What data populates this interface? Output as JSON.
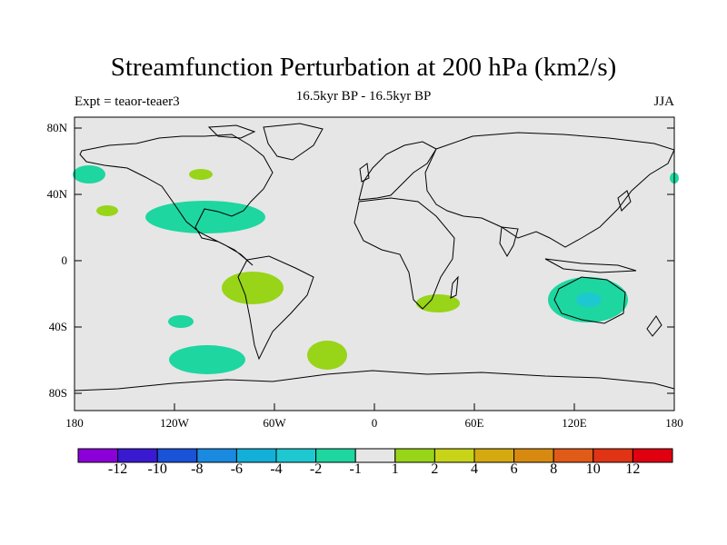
{
  "title": "Streamfunction Perturbation at 200 hPa (km2/s)",
  "left_label": "Expt = teaor-teaer3",
  "center_label": "16.5kyr BP - 16.5kyr BP",
  "right_label": "JJA",
  "lat_ticks": [
    "80N",
    "40N",
    "0",
    "40S",
    "80S"
  ],
  "lon_ticks": [
    "180",
    "120W",
    "60W",
    "0",
    "60E",
    "120E",
    "180"
  ],
  "colorbar": {
    "colors": [
      "#8b00d8",
      "#3a1ad0",
      "#1a52d8",
      "#1a8ae0",
      "#12b0d8",
      "#1ec8d0",
      "#1ed6a0",
      "#e6e6e6",
      "#98d418",
      "#c8d418",
      "#d4aa10",
      "#d88a10",
      "#e05a18",
      "#e03414",
      "#e00010"
    ],
    "labels": [
      "-12",
      "-10",
      "-8",
      "-6",
      "-4",
      "-2",
      "-1",
      "1",
      "2",
      "4",
      "6",
      "8",
      "10",
      "12"
    ]
  },
  "colors": {
    "land_ocean_fill": "#e6e6e6",
    "negative": "#1ed6a0",
    "negative_strong": "#1ec8d0",
    "positive": "#98d418"
  }
}
